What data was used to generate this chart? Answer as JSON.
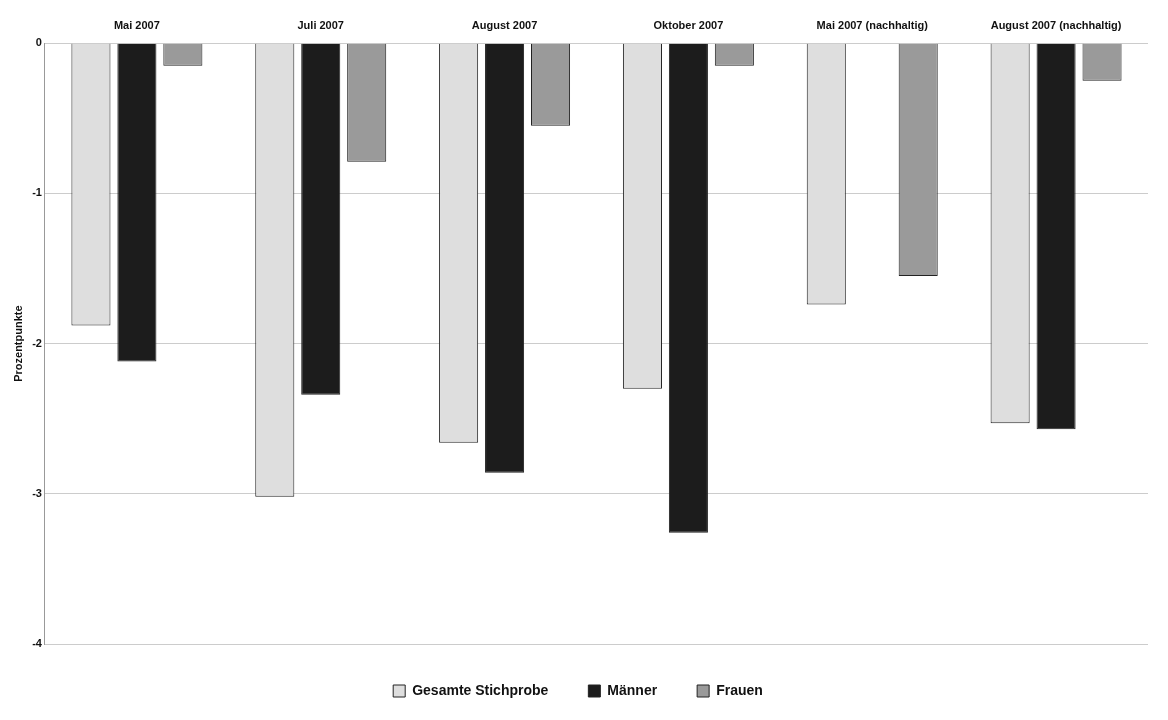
{
  "chart_data": {
    "type": "bar",
    "ylabel": "Prozentpunkte",
    "categories": [
      "Mai 2007",
      "Juli 2007",
      "August 2007",
      "Oktober 2007",
      "Mai 2007 (nachhaltig)",
      "August 2007 (nachhaltig)"
    ],
    "series": [
      {
        "name": "Gesamte Stichprobe",
        "color": "#dedede",
        "values": [
          -1.88,
          -3.02,
          -2.66,
          -2.3,
          -1.74,
          -2.53
        ]
      },
      {
        "name": "Männer",
        "color": "#1c1c1c",
        "values": [
          -2.12,
          -2.34,
          -2.86,
          -3.26,
          null,
          -2.57
        ]
      },
      {
        "name": "Frauen",
        "color": "#9a9a9a",
        "values": [
          -0.15,
          -0.79,
          -0.55,
          -0.15,
          -1.55,
          -0.25
        ]
      }
    ],
    "ylim": [
      -4,
      0
    ],
    "yticks": [
      -4,
      -3,
      -2,
      -1,
      0
    ],
    "grid": "y",
    "legend": "bottom"
  }
}
